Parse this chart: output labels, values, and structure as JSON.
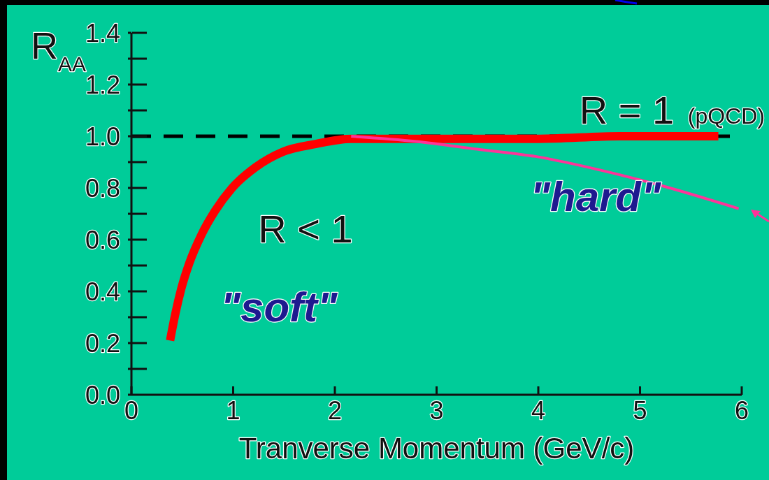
{
  "chart_data": {
    "type": "line",
    "xlabel": "Tranverse Momentum (GeV/c)",
    "ylabel": "R$_{AA}$",
    "xlim": [
      0,
      6
    ],
    "xticks": [
      0,
      1,
      2,
      3,
      4,
      5,
      6
    ],
    "ylim": [
      0,
      1.4
    ],
    "yticks": [
      {
        "value": 0,
        "label": "0.0"
      },
      {
        "value": 0.1,
        "label": null
      },
      0.2,
      {
        "value": 0.3,
        "label": null
      },
      0.4,
      {
        "value": 0.5,
        "label": null
      },
      0.6,
      {
        "value": 0.7,
        "label": null
      },
      0.8,
      {
        "value": 0.9,
        "label": null
      },
      {
        "value": 1,
        "label": "1.0"
      },
      {
        "value": 1.1,
        "label": null
      },
      1.2,
      {
        "value": 1.3,
        "label": null
      },
      1.4
    ],
    "series": [
      {
        "color": "#ff0000",
        "line_style": "solid",
        "x": [
          0.38,
          0.43,
          0.49,
          0.57,
          0.69,
          0.82,
          0.99,
          1.22,
          1.49,
          1.81,
          2.16,
          3.0,
          4.0,
          4.8,
          5.77
        ],
        "values": [
          0.21,
          0.31,
          0.41,
          0.51,
          0.62,
          0.71,
          0.8,
          0.88,
          0.94,
          0.97,
          0.99,
          0.99,
          0.99,
          1.0,
          1.0
        ]
      },
      {
        "color": "#ff3399",
        "line_style": "solid",
        "x": [
          2.16,
          2.8,
          3.4,
          4.0,
          4.6,
          5.2,
          5.97
        ],
        "values": [
          1.0,
          0.98,
          0.95,
          0.92,
          0.87,
          0.81,
          0.72
        ]
      }
    ],
    "ref_lines": [
      {
        "axis": "y",
        "value": 1,
        "label": "R = 1 (pQCD)",
        "color": "#000000",
        "line_style": "dashed"
      }
    ],
    "annotations": [
      "R < 1",
      "\"soft\"",
      "\"hard\""
    ]
  }
}
